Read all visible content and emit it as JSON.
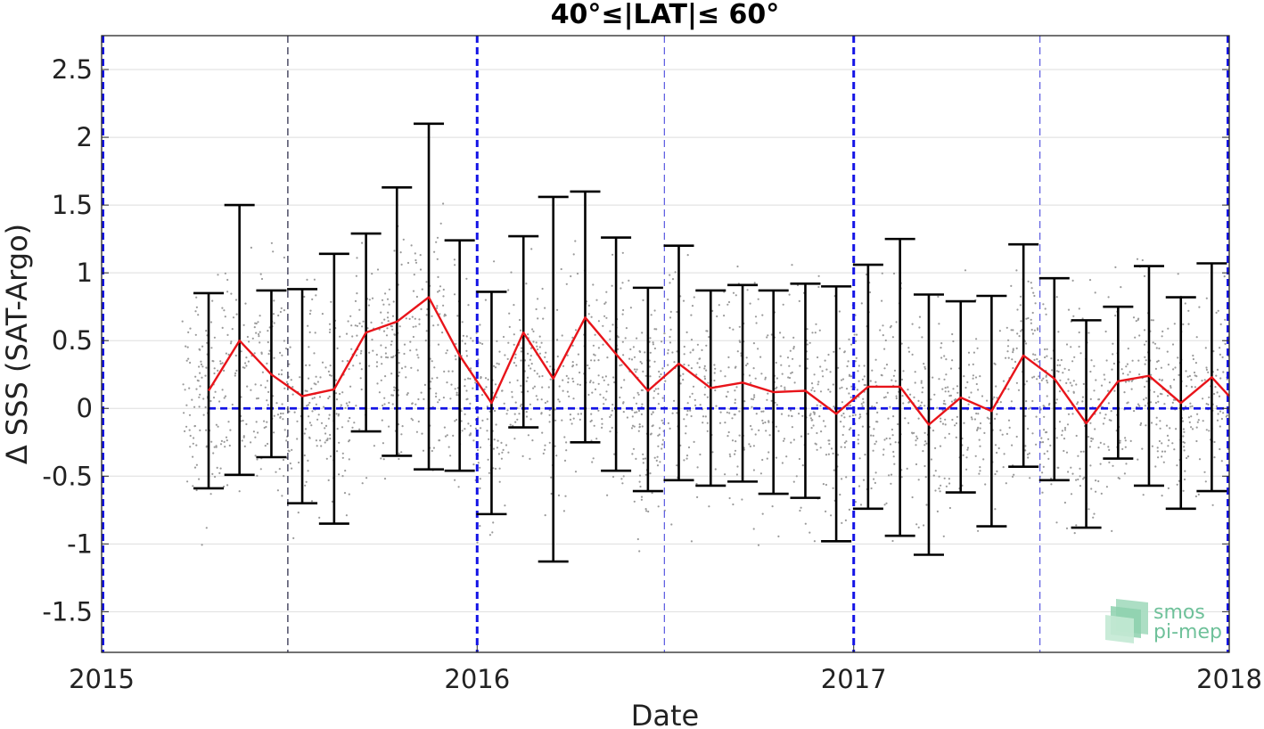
{
  "chart_data": {
    "type": "errorbar-line-scatter",
    "title": "40°≤|LAT|≤ 60°",
    "xlabel": "Date",
    "ylabel": "Δ SSS (SAT-Argo)",
    "xlim": [
      "2015-01-01",
      "2018-01-01"
    ],
    "ylim": [
      -1.8,
      2.75
    ],
    "x_ticks": [
      {
        "value": "2015-01-01",
        "label": "2015"
      },
      {
        "value": "2016-01-01",
        "label": "2016"
      },
      {
        "value": "2017-01-01",
        "label": "2017"
      },
      {
        "value": "2018-01-01",
        "label": "2018"
      }
    ],
    "y_ticks": [
      2.5,
      2,
      1.5,
      1,
      0.5,
      0,
      -0.5,
      -1,
      -1.5
    ],
    "y_tick_labels": [
      "2.5",
      "2",
      "1.5",
      "1",
      "0.5",
      "0",
      "-0.5",
      "-1",
      "-1.5"
    ],
    "grid": "horizontal",
    "year_lines": [
      "2015-01-01",
      "2016-01-01",
      "2017-01-01",
      "2018-01-01"
    ],
    "half_year_lines": [
      "2015-07-01",
      "2016-07-01",
      "2017-07-01"
    ],
    "zero_line": 0,
    "colors": {
      "mean_line": "#e8141a",
      "error_bar": "#000000",
      "year_line": "#1414e6",
      "half_year_line_first": "#202040",
      "half_year_line": "#5a5ae0",
      "zero_line": "#1414e6",
      "scatter": "#9a9a9a",
      "grid": "#dedede"
    },
    "series": [
      {
        "x": [
          "2015-04-15",
          "2015-05-15",
          "2015-06-15",
          "2015-07-15",
          "2015-08-15",
          "2015-09-15",
          "2015-10-15",
          "2015-11-15",
          "2015-12-15",
          "2016-01-15",
          "2016-02-15",
          "2016-03-15",
          "2016-04-15",
          "2016-05-15",
          "2016-06-15",
          "2016-07-15",
          "2016-08-15",
          "2016-09-15",
          "2016-10-15",
          "2016-11-15",
          "2016-12-15",
          "2017-01-15",
          "2017-02-15",
          "2017-03-15",
          "2017-04-15",
          "2017-05-15",
          "2017-06-15",
          "2017-07-15",
          "2017-08-15",
          "2017-09-15",
          "2017-10-15",
          "2017-11-15",
          "2017-12-15"
        ],
        "mean": [
          0.13,
          0.5,
          0.25,
          0.09,
          0.14,
          0.56,
          0.64,
          0.82,
          0.39,
          0.04,
          0.56,
          0.22,
          0.67,
          0.4,
          0.13,
          0.33,
          0.15,
          0.19,
          0.12,
          0.13,
          -0.04,
          0.16,
          0.16,
          -0.12,
          0.08,
          -0.02,
          0.39,
          0.22,
          -0.11,
          0.2,
          0.24,
          0.04,
          0.23
        ],
        "upper": [
          0.85,
          1.5,
          0.87,
          0.88,
          1.14,
          1.29,
          1.63,
          2.1,
          1.24,
          0.86,
          1.27,
          1.56,
          1.6,
          1.26,
          0.89,
          1.2,
          0.87,
          0.91,
          0.87,
          0.92,
          0.9,
          1.06,
          1.25,
          0.84,
          0.79,
          0.83,
          1.21,
          0.96,
          0.65,
          0.75,
          1.05,
          0.82,
          1.07
        ],
        "lower": [
          -0.59,
          -0.49,
          -0.36,
          -0.7,
          -0.85,
          -0.17,
          -0.35,
          -0.45,
          -0.46,
          -0.78,
          -0.14,
          -1.13,
          -0.25,
          -0.46,
          -0.61,
          -0.53,
          -0.57,
          -0.54,
          -0.63,
          -0.66,
          -0.98,
          -0.74,
          -0.94,
          -1.08,
          -0.62,
          -0.87,
          -0.43,
          -0.53,
          -0.88,
          -0.37,
          -0.57,
          -0.74,
          -0.61
        ]
      }
    ],
    "scatter_note_count": 2600
  },
  "logo": {
    "line1": "smos",
    "line2": "pi-mep"
  }
}
